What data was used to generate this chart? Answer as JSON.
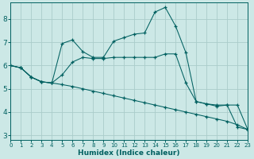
{
  "background_color": "#cce8e6",
  "grid_color": "#aaccca",
  "line_color": "#006060",
  "xlabel": "Humidex (Indice chaleur)",
  "xlim": [
    0,
    23
  ],
  "ylim": [
    2.8,
    8.7
  ],
  "yticks": [
    3,
    4,
    5,
    6,
    7,
    8
  ],
  "xticks": [
    0,
    1,
    2,
    3,
    4,
    5,
    6,
    7,
    8,
    9,
    10,
    11,
    12,
    13,
    14,
    15,
    16,
    17,
    18,
    19,
    20,
    21,
    22,
    23
  ],
  "line1_y": [
    6.0,
    5.9,
    5.5,
    5.3,
    5.25,
    5.18,
    5.1,
    5.0,
    4.9,
    4.8,
    4.7,
    4.6,
    4.5,
    4.4,
    4.3,
    4.2,
    4.1,
    4.0,
    3.9,
    3.8,
    3.7,
    3.6,
    3.45,
    3.25
  ],
  "line2_y": [
    6.0,
    5.9,
    5.5,
    5.3,
    5.25,
    5.6,
    6.15,
    6.35,
    6.3,
    6.3,
    6.35,
    6.35,
    6.35,
    6.35,
    6.35,
    6.5,
    6.5,
    5.25,
    4.45,
    4.35,
    4.3,
    4.3,
    4.3,
    3.25
  ],
  "line3_y": [
    6.0,
    5.9,
    5.5,
    5.3,
    5.25,
    6.95,
    7.1,
    6.6,
    6.35,
    6.35,
    7.05,
    7.2,
    7.35,
    7.4,
    8.3,
    8.5,
    7.7,
    6.55,
    4.45,
    4.35,
    4.25,
    4.3,
    3.35,
    3.25
  ]
}
